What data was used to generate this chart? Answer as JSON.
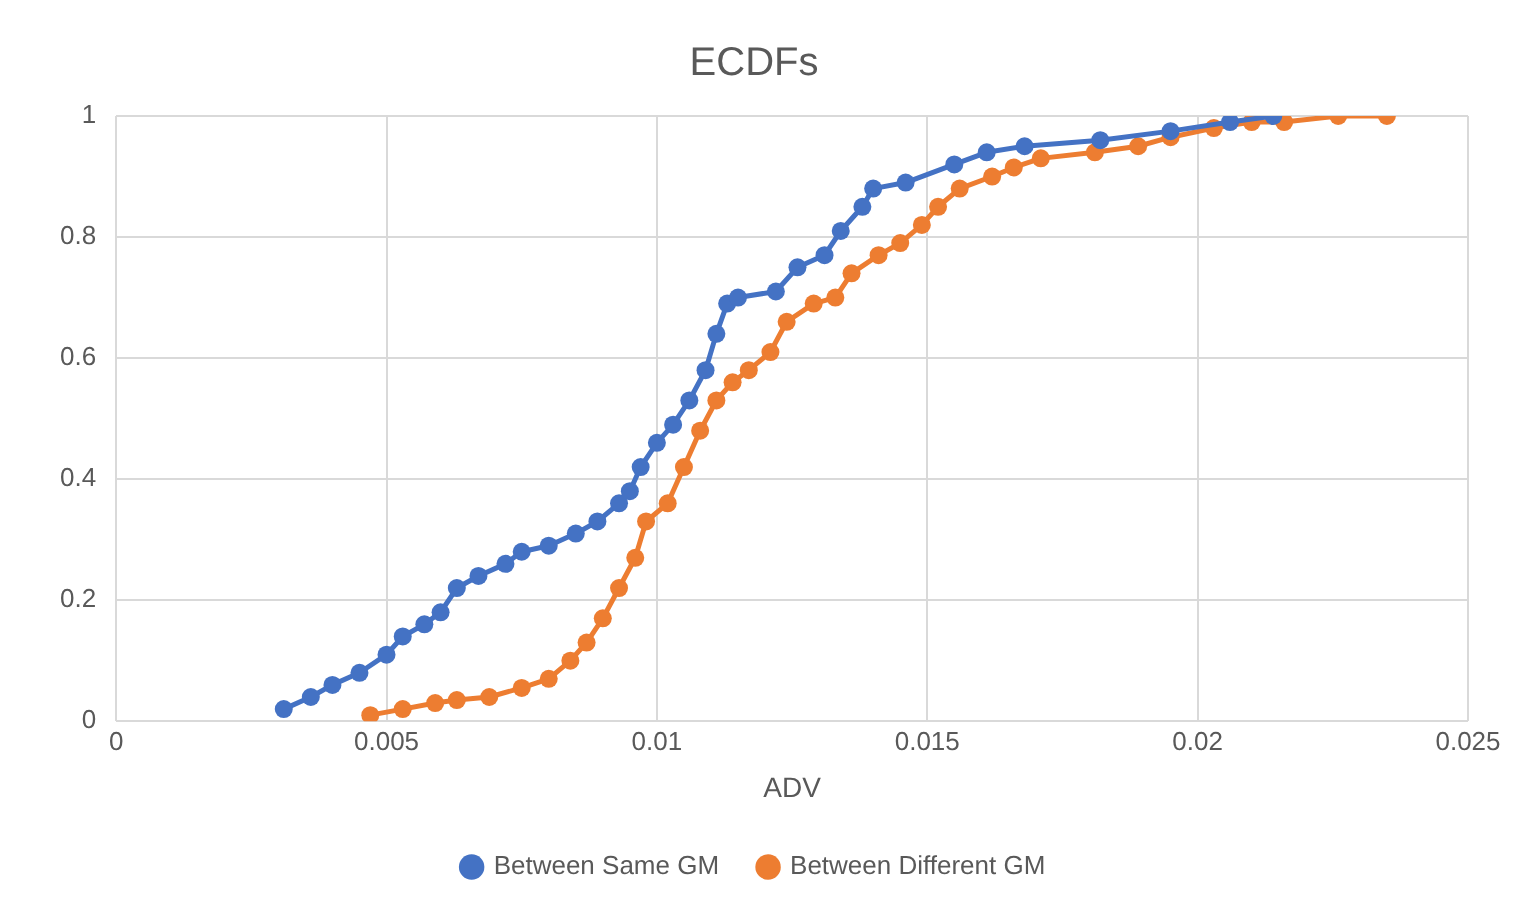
{
  "chart_data": {
    "type": "line",
    "title": "ECDFs",
    "xlabel": "ADV",
    "xlim": [
      0,
      0.025
    ],
    "xticks": [
      0,
      0.005,
      0.01,
      0.015,
      0.02,
      0.025
    ],
    "ylim": [
      0,
      1
    ],
    "yticks": [
      0,
      0.2,
      0.4,
      0.6,
      0.8,
      1
    ],
    "grid": true,
    "legend": "bottom",
    "marker": "circle",
    "line_style": "solid",
    "series": [
      {
        "name": "Between Same GM",
        "color": "#4472c4",
        "x": [
          0.0031,
          0.0036,
          0.004,
          0.0045,
          0.005,
          0.0053,
          0.0057,
          0.006,
          0.0063,
          0.0067,
          0.0072,
          0.0075,
          0.008,
          0.0085,
          0.0089,
          0.0093,
          0.0095,
          0.0097,
          0.01,
          0.0103,
          0.0106,
          0.0109,
          0.0111,
          0.0113,
          0.0115,
          0.0122,
          0.0126,
          0.0131,
          0.0134,
          0.0138,
          0.014,
          0.0146,
          0.0155,
          0.0161,
          0.0168,
          0.0182,
          0.0195,
          0.0206,
          0.0214
        ],
        "values": [
          0.02,
          0.04,
          0.06,
          0.08,
          0.11,
          0.14,
          0.16,
          0.18,
          0.22,
          0.24,
          0.26,
          0.28,
          0.29,
          0.31,
          0.33,
          0.36,
          0.38,
          0.42,
          0.46,
          0.49,
          0.53,
          0.58,
          0.64,
          0.69,
          0.7,
          0.71,
          0.75,
          0.77,
          0.81,
          0.85,
          0.88,
          0.89,
          0.92,
          0.94,
          0.95,
          0.96,
          0.975,
          0.99,
          1
        ]
      },
      {
        "name": "Between Different GM",
        "color": "#ed7d31",
        "x": [
          0.0047,
          0.0053,
          0.0059,
          0.0063,
          0.0069,
          0.0075,
          0.008,
          0.0084,
          0.0087,
          0.009,
          0.0093,
          0.0096,
          0.0098,
          0.0102,
          0.0105,
          0.0108,
          0.0111,
          0.0114,
          0.0117,
          0.0121,
          0.0124,
          0.0129,
          0.0133,
          0.0136,
          0.0141,
          0.0145,
          0.0149,
          0.0152,
          0.0156,
          0.0162,
          0.0166,
          0.0171,
          0.0181,
          0.0189,
          0.0195,
          0.0203,
          0.021,
          0.0216,
          0.0226,
          0.0235
        ],
        "values": [
          0.01,
          0.02,
          0.03,
          0.035,
          0.04,
          0.055,
          0.07,
          0.1,
          0.13,
          0.17,
          0.22,
          0.27,
          0.33,
          0.36,
          0.42,
          0.48,
          0.53,
          0.56,
          0.58,
          0.61,
          0.66,
          0.69,
          0.7,
          0.74,
          0.77,
          0.79,
          0.82,
          0.85,
          0.88,
          0.9,
          0.915,
          0.93,
          0.94,
          0.95,
          0.965,
          0.98,
          0.99,
          0.99,
          1,
          1
        ]
      }
    ]
  }
}
